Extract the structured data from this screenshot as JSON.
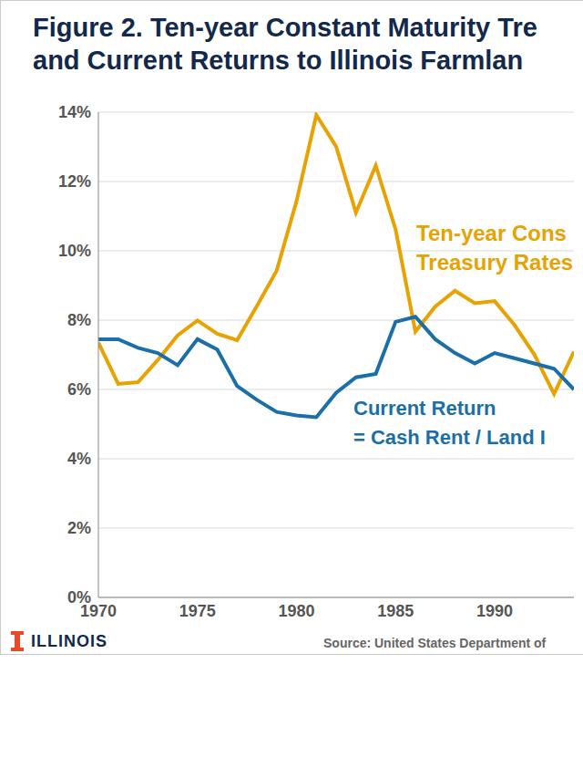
{
  "chart_data": {
    "type": "line",
    "title": [
      "Figure 2. Ten-year Constant Maturity Tre",
      "and Current Returns to Illinois Farmlan"
    ],
    "x": [
      1970,
      1971,
      1972,
      1973,
      1974,
      1975,
      1976,
      1977,
      1978,
      1979,
      1980,
      1981,
      1982,
      1983,
      1984,
      1985,
      1986,
      1987,
      1988,
      1989,
      1990,
      1991,
      1992,
      1993,
      1994
    ],
    "xlim": [
      1970,
      1994
    ],
    "xticks": [
      1970,
      1975,
      1980,
      1985,
      1990
    ],
    "ylim": [
      0,
      14
    ],
    "yticks": [
      {
        "value": 0,
        "label": "0%"
      },
      {
        "value": 2,
        "label": "2%"
      },
      {
        "value": 4,
        "label": "4%"
      },
      {
        "value": 6,
        "label": "6%"
      },
      {
        "value": 8,
        "label": "8%"
      },
      {
        "value": 10,
        "label": "10%"
      },
      {
        "value": 12,
        "label": "12%"
      },
      {
        "value": 14,
        "label": "14%"
      }
    ],
    "grid": true,
    "series": [
      {
        "label": [
          "Ten-year Cons",
          "Treasury Rates"
        ],
        "color": "#E8A202",
        "values": [
          7.35,
          6.16,
          6.21,
          6.85,
          7.56,
          7.99,
          7.61,
          7.42,
          8.41,
          9.43,
          11.43,
          13.92,
          13.01,
          11.1,
          12.46,
          10.62,
          7.67,
          8.39,
          8.85,
          8.49,
          8.55,
          7.86,
          7.01,
          5.87,
          7.09
        ]
      },
      {
        "label": [
          "Current Return",
          "= Cash Rent / Land I"
        ],
        "color": "#1B6FA8",
        "values": [
          7.45,
          7.45,
          7.2,
          7.05,
          6.7,
          7.45,
          7.15,
          6.1,
          5.7,
          5.35,
          5.25,
          5.2,
          5.9,
          6.35,
          6.45,
          7.95,
          8.1,
          7.45,
          7.05,
          6.75,
          7.05,
          6.9,
          6.75,
          6.6,
          6.0
        ]
      }
    ],
    "source": "Source: United States Department of",
    "logo": "ILLINOIS"
  }
}
